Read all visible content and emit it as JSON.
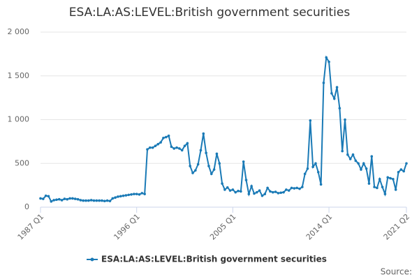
{
  "chart_data": {
    "type": "line",
    "title": "ESA:LA:AS:LEVEL:British government securities",
    "source": "Source:",
    "categories": [
      "1987 Q1",
      null,
      null,
      null,
      null,
      null,
      null,
      null,
      null,
      null,
      null,
      null,
      null,
      null,
      null,
      null,
      null,
      null,
      null,
      null,
      null,
      null,
      null,
      null,
      null,
      null,
      null,
      null,
      null,
      null,
      null,
      null,
      null,
      null,
      null,
      null,
      "1996 Q1",
      null,
      null,
      null,
      null,
      null,
      null,
      null,
      null,
      null,
      null,
      null,
      null,
      null,
      null,
      null,
      null,
      null,
      null,
      null,
      null,
      null,
      null,
      null,
      null,
      null,
      null,
      null,
      null,
      null,
      null,
      null,
      null,
      null,
      null,
      null,
      "2005 Q1",
      null,
      null,
      null,
      null,
      null,
      null,
      null,
      null,
      null,
      null,
      null,
      null,
      null,
      null,
      null,
      null,
      null,
      null,
      null,
      null,
      null,
      null,
      null,
      null,
      null,
      null,
      null,
      null,
      null,
      null,
      null,
      null,
      null,
      null,
      null,
      "2014 Q1",
      null,
      null,
      null,
      null,
      null,
      null,
      null,
      null,
      null,
      null,
      null,
      null,
      null,
      null,
      null,
      null,
      null,
      null,
      null,
      null,
      null,
      null,
      null,
      null,
      null,
      null,
      null,
      null,
      "2021 Q2"
    ],
    "series": [
      {
        "name": "ESA:LA:AS:LEVEL:British government securities",
        "color": "#1a7ab6",
        "values": [
          100,
          95,
          130,
          125,
          65,
          80,
          85,
          90,
          80,
          95,
          90,
          100,
          100,
          95,
          90,
          80,
          75,
          75,
          75,
          80,
          75,
          75,
          75,
          75,
          70,
          75,
          70,
          100,
          110,
          120,
          125,
          130,
          135,
          140,
          145,
          150,
          150,
          145,
          160,
          150,
          660,
          680,
          680,
          700,
          720,
          740,
          790,
          800,
          815,
          690,
          670,
          680,
          670,
          650,
          700,
          730,
          470,
          390,
          420,
          490,
          650,
          840,
          620,
          470,
          380,
          430,
          610,
          500,
          270,
          200,
          225,
          190,
          200,
          170,
          185,
          180,
          520,
          310,
          150,
          240,
          155,
          170,
          190,
          130,
          150,
          220,
          180,
          170,
          175,
          160,
          165,
          170,
          200,
          190,
          220,
          215,
          220,
          210,
          230,
          380,
          440,
          990,
          460,
          500,
          400,
          260,
          1420,
          1710,
          1660,
          1300,
          1240,
          1370,
          1130,
          640,
          1000,
          600,
          550,
          600,
          530,
          500,
          430,
          500,
          440,
          270,
          580,
          230,
          220,
          320,
          230,
          150,
          340,
          330,
          320,
          200,
          400,
          430,
          410,
          500
        ]
      }
    ],
    "ylim": [
      0,
      2000
    ],
    "yticks": [
      0,
      500,
      {
        "value": 1000,
        "label": "1 000"
      },
      {
        "value": 1500,
        "label": "1 500"
      },
      {
        "value": 2000,
        "label": "2 000"
      }
    ],
    "grid": true
  }
}
